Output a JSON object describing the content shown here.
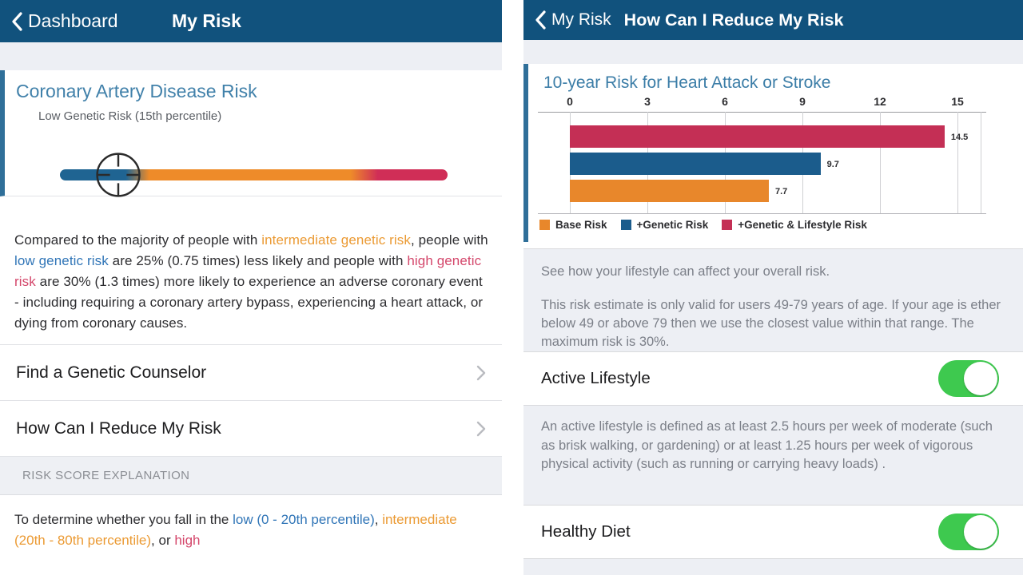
{
  "palette": {
    "header_navy": "#11527d",
    "card_accent_blue": "#2f6f99",
    "title_blue": "#4181aa",
    "toggle_green": "#3ec94f"
  },
  "left_screen": {
    "nav": {
      "back_label": "Dashboard",
      "title": "My Risk"
    },
    "card": {
      "title": "Coronary Artery Disease Risk",
      "subtitle": "Low Genetic Risk (15th percentile)",
      "risk_meter": {
        "marker_percentile": 15,
        "zones": [
          {
            "name": "low",
            "color": "#1f6492",
            "range_pct": [
              0,
              20
            ]
          },
          {
            "name": "intermediate",
            "color": "#ee8b29",
            "range_pct": [
              20,
              80
            ]
          },
          {
            "name": "high",
            "color": "#d02e57",
            "range_pct": [
              80,
              100
            ]
          }
        ]
      }
    },
    "comparison_paragraph": {
      "segments": [
        {
          "text": "Compared to the majority of people with "
        },
        {
          "text": "intermediate genetic risk"
        },
        {
          "text": ", people with "
        },
        {
          "text": "low genetic risk"
        },
        {
          "text": " are 25% (0.75 times) less likely and people with "
        },
        {
          "text": "high genetic risk"
        },
        {
          "text": " are 30% (1.3 times) more likely to experience an adverse coronary event - including requiring a coronary artery bypass, experiencing a heart attack, or dying from coronary causes."
        }
      ]
    },
    "links": [
      {
        "label": "Find a Genetic Counselor"
      },
      {
        "label": "How Can I Reduce My Risk"
      }
    ],
    "section_header": "RISK SCORE EXPLANATION",
    "explanation_paragraph": {
      "segments": [
        {
          "text": "To determine whether you fall in the "
        },
        {
          "text": "low (0 - 20th percentile)"
        },
        {
          "text": ", "
        },
        {
          "text": "intermediate (20th - 80th percentile)"
        },
        {
          "text": ", or "
        },
        {
          "text": "high"
        }
      ]
    }
  },
  "right_screen": {
    "nav": {
      "back_label": "My Risk",
      "title": "How Can I Reduce My Risk"
    },
    "info_section": {
      "line1": "See how your lifestyle can affect your overall risk.",
      "line2": "This risk estimate is only valid for users 49-79 years of age. If your age is ether below 49 or above 79 then we use the closest value within that range. The maximum risk is 30%."
    },
    "toggles": [
      {
        "label": "Active Lifestyle",
        "state": "on",
        "description": "An active lifestyle is defined as at least 2.5 hours per week of moderate (such as brisk walking, or gardening) or at least 1.25 hours per week of vigorous physical activity (such as running or carrying heavy loads) ."
      },
      {
        "label": "Healthy Diet",
        "state": "on",
        "description": ""
      }
    ]
  },
  "chart_data": {
    "type": "bar",
    "orientation": "horizontal",
    "title": "10-year Risk for Heart Attack or Stroke",
    "x_ticks": [
      0,
      3,
      6,
      9,
      12,
      15
    ],
    "xlim": [
      0,
      15
    ],
    "grid": true,
    "legend_position": "bottom",
    "series": [
      {
        "name": "Base Risk",
        "value": 7.7,
        "color": "#e8872b"
      },
      {
        "name": "+Genetic Risk",
        "value": 9.7,
        "color": "#1b5c8c"
      },
      {
        "name": "+Genetic & Lifestyle Risk",
        "value": 14.5,
        "color": "#c42f55"
      }
    ],
    "bar_order_top_to_bottom": [
      "+Genetic & Lifestyle Risk",
      "+Genetic Risk",
      "Base Risk"
    ]
  }
}
